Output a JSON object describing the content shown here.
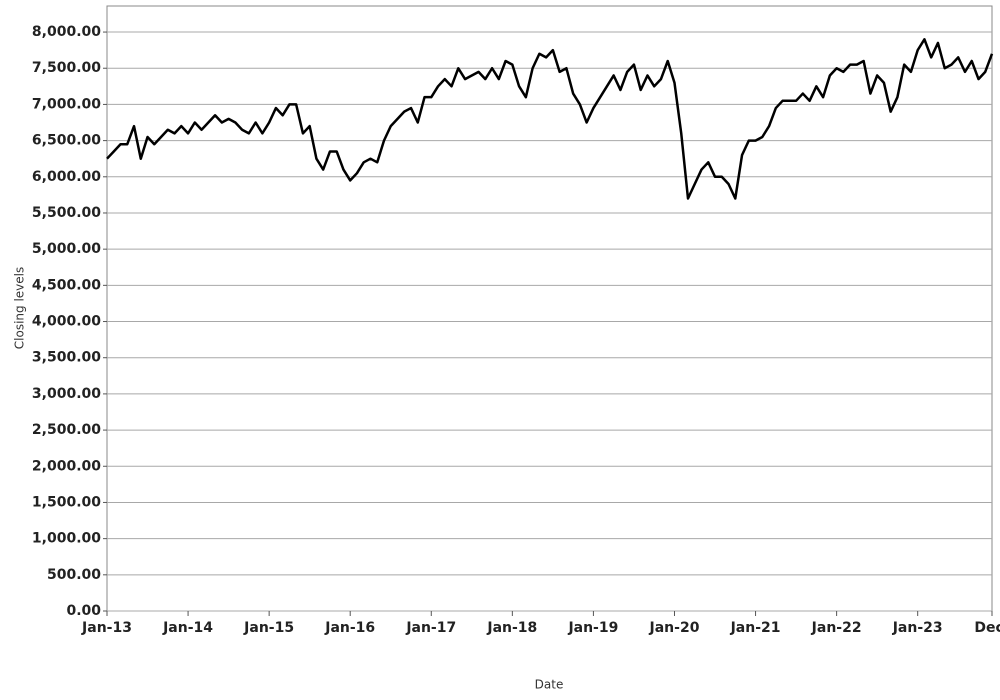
{
  "chart_data": {
    "type": "line",
    "x_label": "Date",
    "y_label": "Closing levels",
    "grid": true,
    "x": [
      "2013-01",
      "2013-02",
      "2013-03",
      "2013-04",
      "2013-05",
      "2013-06",
      "2013-07",
      "2013-08",
      "2013-09",
      "2013-10",
      "2013-11",
      "2013-12",
      "2014-01",
      "2014-02",
      "2014-03",
      "2014-04",
      "2014-05",
      "2014-06",
      "2014-07",
      "2014-08",
      "2014-09",
      "2014-10",
      "2014-11",
      "2014-12",
      "2015-01",
      "2015-02",
      "2015-03",
      "2015-04",
      "2015-05",
      "2015-06",
      "2015-07",
      "2015-08",
      "2015-09",
      "2015-10",
      "2015-11",
      "2015-12",
      "2016-01",
      "2016-02",
      "2016-03",
      "2016-04",
      "2016-05",
      "2016-06",
      "2016-07",
      "2016-08",
      "2016-09",
      "2016-10",
      "2016-11",
      "2016-12",
      "2017-01",
      "2017-02",
      "2017-03",
      "2017-04",
      "2017-05",
      "2017-06",
      "2017-07",
      "2017-08",
      "2017-09",
      "2017-10",
      "2017-11",
      "2017-12",
      "2018-01",
      "2018-02",
      "2018-03",
      "2018-04",
      "2018-05",
      "2018-06",
      "2018-07",
      "2018-08",
      "2018-09",
      "2018-10",
      "2018-11",
      "2018-12",
      "2019-01",
      "2019-02",
      "2019-03",
      "2019-04",
      "2019-05",
      "2019-06",
      "2019-07",
      "2019-08",
      "2019-09",
      "2019-10",
      "2019-11",
      "2019-12",
      "2020-01",
      "2020-02",
      "2020-03",
      "2020-04",
      "2020-05",
      "2020-06",
      "2020-07",
      "2020-08",
      "2020-09",
      "2020-10",
      "2020-11",
      "2020-12",
      "2021-01",
      "2021-02",
      "2021-03",
      "2021-04",
      "2021-05",
      "2021-06",
      "2021-07",
      "2021-08",
      "2021-09",
      "2021-10",
      "2021-11",
      "2021-12",
      "2022-01",
      "2022-02",
      "2022-03",
      "2022-04",
      "2022-05",
      "2022-06",
      "2022-07",
      "2022-08",
      "2022-09",
      "2022-10",
      "2022-11",
      "2022-12",
      "2023-01",
      "2023-02",
      "2023-03",
      "2023-04",
      "2023-05",
      "2023-06",
      "2023-07",
      "2023-08",
      "2023-09",
      "2023-10",
      "2023-11",
      "2023-12"
    ],
    "series": [
      {
        "color": "#000000",
        "values": [
          6250,
          6350,
          6450,
          6450,
          6700,
          6250,
          6550,
          6450,
          6550,
          6650,
          6600,
          6700,
          6600,
          6750,
          6650,
          6750,
          6850,
          6750,
          6800,
          6750,
          6650,
          6600,
          6750,
          6600,
          6750,
          6950,
          6850,
          7000,
          7000,
          6600,
          6700,
          6250,
          6100,
          6350,
          6350,
          6100,
          5950,
          6050,
          6200,
          6250,
          6200,
          6500,
          6700,
          6800,
          6900,
          6950,
          6750,
          7100,
          7100,
          7250,
          7350,
          7250,
          7500,
          7350,
          7400,
          7450,
          7350,
          7500,
          7350,
          7600,
          7550,
          7250,
          7100,
          7500,
          7700,
          7650,
          7750,
          7450,
          7500,
          7150,
          7000,
          6750,
          6950,
          7100,
          7250,
          7400,
          7200,
          7450,
          7550,
          7200,
          7400,
          7250,
          7350,
          7600,
          7300,
          6600,
          5700,
          5900,
          6100,
          6200,
          6000,
          6000,
          5900,
          5700,
          6300,
          6500,
          6500,
          6550,
          6700,
          6950,
          7050,
          7050,
          7050,
          7150,
          7050,
          7250,
          7100,
          7400,
          7500,
          7450,
          7550,
          7550,
          7600,
          7150,
          7400,
          7300,
          6900,
          7100,
          7550,
          7450,
          7750,
          7900,
          7650,
          7850,
          7500,
          7550,
          7650,
          7450,
          7600,
          7350,
          7450,
          7700
        ]
      }
    ],
    "xlim": [
      "2013-01",
      "2023-12"
    ],
    "xticks": [
      {
        "value": "2013-01",
        "label": "Jan-13"
      },
      {
        "value": "2014-01",
        "label": "Jan-14"
      },
      {
        "value": "2015-01",
        "label": "Jan-15"
      },
      {
        "value": "2016-01",
        "label": "Jan-16"
      },
      {
        "value": "2017-01",
        "label": "Jan-17"
      },
      {
        "value": "2018-01",
        "label": "Jan-18"
      },
      {
        "value": "2019-01",
        "label": "Jan-19"
      },
      {
        "value": "2020-01",
        "label": "Jan-20"
      },
      {
        "value": "2021-01",
        "label": "Jan-21"
      },
      {
        "value": "2022-01",
        "label": "Jan-22"
      },
      {
        "value": "2023-01",
        "label": "Jan-23"
      },
      {
        "value": "2023-12",
        "label": "Dec-"
      }
    ],
    "ylim": [
      0,
      8360
    ],
    "yticks": [
      {
        "value": 0,
        "label": "0.00"
      },
      {
        "value": 500,
        "label": "500.00"
      },
      {
        "value": 1000,
        "label": "1,000.00"
      },
      {
        "value": 1500,
        "label": "1,500.00"
      },
      {
        "value": 2000,
        "label": "2,000.00"
      },
      {
        "value": 2500,
        "label": "2,500.00"
      },
      {
        "value": 3000,
        "label": "3,000.00"
      },
      {
        "value": 3500,
        "label": "3,500.00"
      },
      {
        "value": 4000,
        "label": "4,000.00"
      },
      {
        "value": 4500,
        "label": "4,500.00"
      },
      {
        "value": 5000,
        "label": "5,000.00"
      },
      {
        "value": 5500,
        "label": "5,500.00"
      },
      {
        "value": 6000,
        "label": "6,000.00"
      },
      {
        "value": 6500,
        "label": "6,500.00"
      },
      {
        "value": 7000,
        "label": "7,000.00"
      },
      {
        "value": 7500,
        "label": "7,500.00"
      },
      {
        "value": 8000,
        "label": "8,000.00"
      }
    ]
  }
}
